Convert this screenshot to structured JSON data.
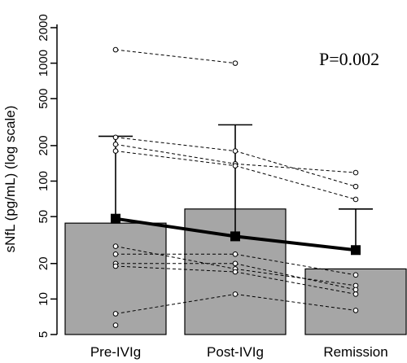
{
  "chart_data": {
    "type": "bar",
    "title": "",
    "ylabel": "sNfL (pg/mL) (log scale)",
    "xlabel": "",
    "yscale": "log",
    "ylim": [
      5,
      2000
    ],
    "yticks": [
      5,
      10,
      20,
      50,
      100,
      200,
      500,
      1000,
      2000
    ],
    "ytick_labels": [
      "5",
      "10",
      "20",
      "50",
      "100",
      "200",
      "500",
      "1000",
      "2000"
    ],
    "annotation": "P=0.002",
    "categories": [
      "Pre-IVIg",
      "Post-IVIg",
      "Remission"
    ],
    "bars": [
      44,
      58,
      18
    ],
    "error_upper": [
      240,
      300,
      58
    ],
    "means": [
      48,
      34,
      26
    ],
    "subjects": [
      [
        1300,
        1000,
        null
      ],
      [
        235,
        180,
        90
      ],
      [
        205,
        140,
        118
      ],
      [
        180,
        135,
        70
      ],
      [
        28,
        18,
        13
      ],
      [
        24,
        24,
        16
      ],
      [
        20,
        20,
        12
      ],
      [
        19,
        17,
        11
      ],
      [
        7.5,
        11,
        8
      ],
      [
        6,
        null,
        null
      ]
    ]
  }
}
